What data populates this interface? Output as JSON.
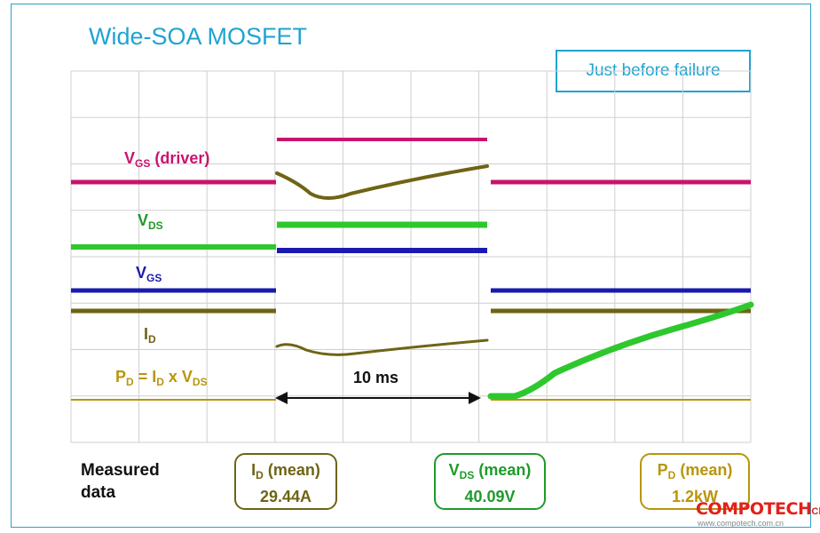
{
  "title": "Wide-SOA MOSFET",
  "badge": "Just before failure",
  "labels": {
    "vgs_driver": {
      "main": "V",
      "sub": "GS",
      "rest": " (driver)",
      "color": "#c8146e"
    },
    "vds": {
      "main": "V",
      "sub": "DS",
      "color": "#1f9a2a"
    },
    "vgs": {
      "main": "V",
      "sub": "GS",
      "color": "#1a1ab0"
    },
    "id": {
      "main": "I",
      "sub": "D",
      "color": "#6e6414"
    },
    "pd": {
      "p": "P",
      "p_sub": "D",
      "eq": " = I",
      "i_sub": "D",
      "x": " x V",
      "v_sub": "DS",
      "color": "#b8960a"
    }
  },
  "duration": "10 ms",
  "measured_label_1": "Measured",
  "measured_label_2": "data",
  "boxes": {
    "id": {
      "name": "I",
      "sub": "D",
      "suffix": " (mean)",
      "value": "29.44A",
      "color": "#6e6414"
    },
    "vds": {
      "name": "V",
      "sub": "DS",
      "suffix": " (mean)",
      "value": "40.09V",
      "color": "#1f9a2a"
    },
    "pd": {
      "name": "P",
      "sub": "D",
      "suffix": " (mean)",
      "value": "1.2kW",
      "color": "#b8960a"
    }
  },
  "watermark": {
    "main": "COMPOTECH",
    "sub": "China",
    "url": "www.compotech.com.cn"
  },
  "chart_data": {
    "type": "line",
    "title": "Wide-SOA MOSFET",
    "annotation": "Just before failure",
    "grid": true,
    "xlabel": "",
    "ylabel": "",
    "pulse_duration": "10 ms",
    "series": [
      {
        "name": "VGS (driver)",
        "color": "#c8146e"
      },
      {
        "name": "VDS",
        "color": "#2ec82e"
      },
      {
        "name": "VGS",
        "color": "#1a1ab0"
      },
      {
        "name": "ID",
        "color": "#6e6414"
      },
      {
        "name": "PD = ID x VDS",
        "color": "#b8960a"
      }
    ],
    "measured": {
      "ID_mean": "29.44A",
      "VDS_mean": "40.09V",
      "PD_mean": "1.2kW"
    }
  }
}
